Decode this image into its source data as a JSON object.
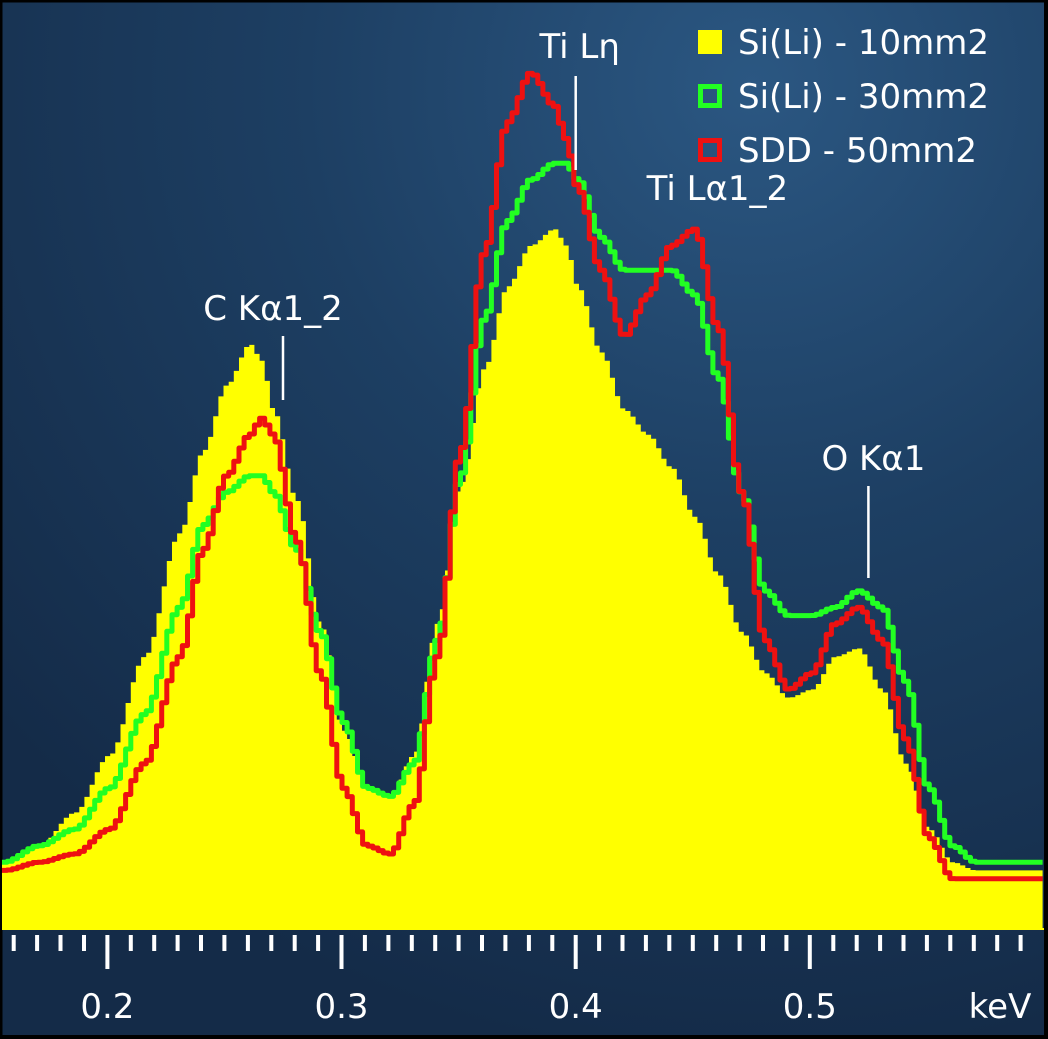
{
  "chart_data": {
    "type": "area",
    "title": "",
    "xlabel": "keV",
    "ylabel": "",
    "xlim": [
      0.155,
      0.6
    ],
    "ylim": [
      0,
      100
    ],
    "x_ticks": [
      0.2,
      0.3,
      0.4,
      0.5
    ],
    "x_tick_labels": [
      "0.2",
      "0.3",
      "0.4",
      "0.5"
    ],
    "x_unit": "keV",
    "grid": false,
    "legend_position": "top-right",
    "x": [
      0.155,
      0.17,
      0.185,
      0.2,
      0.215,
      0.23,
      0.24,
      0.25,
      0.26,
      0.265,
      0.27,
      0.28,
      0.29,
      0.3,
      0.31,
      0.32,
      0.33,
      0.34,
      0.35,
      0.36,
      0.37,
      0.38,
      0.39,
      0.395,
      0.4,
      0.41,
      0.42,
      0.43,
      0.44,
      0.45,
      0.46,
      0.47,
      0.48,
      0.49,
      0.5,
      0.51,
      0.52,
      0.53,
      0.54,
      0.55,
      0.56,
      0.57,
      0.58,
      0.6
    ],
    "series": [
      {
        "name": "Si(Li) - 10mm2",
        "style": "filled",
        "color": "#ffff00",
        "values": [
          8,
          10,
          14,
          21,
          33,
          48,
          58,
          66,
          71,
          69,
          63,
          52,
          37,
          24,
          17,
          16,
          21,
          37,
          54,
          68,
          78,
          83,
          85,
          83,
          78,
          70,
          63,
          60,
          56,
          50,
          43,
          36,
          31,
          28,
          29,
          33,
          34,
          29,
          20,
          12,
          8,
          7,
          7,
          7
        ]
      },
      {
        "name": "Si(Li) - 30mm2",
        "style": "outline",
        "color": "#22ff22",
        "values": [
          8,
          10,
          12,
          17,
          26,
          39,
          49,
          53,
          55,
          55,
          53,
          46,
          36,
          25,
          17,
          16,
          20,
          35,
          55,
          74,
          86,
          91,
          93,
          93,
          91,
          84,
          80,
          80,
          80,
          77,
          67,
          53,
          41,
          38,
          38,
          39,
          41,
          39,
          30,
          17,
          10,
          8,
          8,
          8
        ]
      },
      {
        "name": "SDD - 50mm2",
        "style": "outline",
        "color": "#ee1111",
        "values": [
          7,
          8,
          9,
          12,
          20,
          33,
          46,
          55,
          60,
          62,
          60,
          47,
          31,
          17,
          10,
          9,
          15,
          33,
          58,
          82,
          98,
          104,
          100,
          96,
          90,
          80,
          72,
          77,
          83,
          85,
          73,
          53,
          35,
          29,
          31,
          37,
          39,
          35,
          23,
          11,
          6,
          6,
          6,
          6
        ]
      }
    ],
    "annotations": [
      {
        "label": "C Kα1_2",
        "x": 0.275
      },
      {
        "label": "Ti Lη",
        "x": 0.4
      },
      {
        "label": "Ti Lα1_2",
        "x": 0.452
      },
      {
        "label": "O Kα1",
        "x": 0.525
      }
    ]
  }
}
